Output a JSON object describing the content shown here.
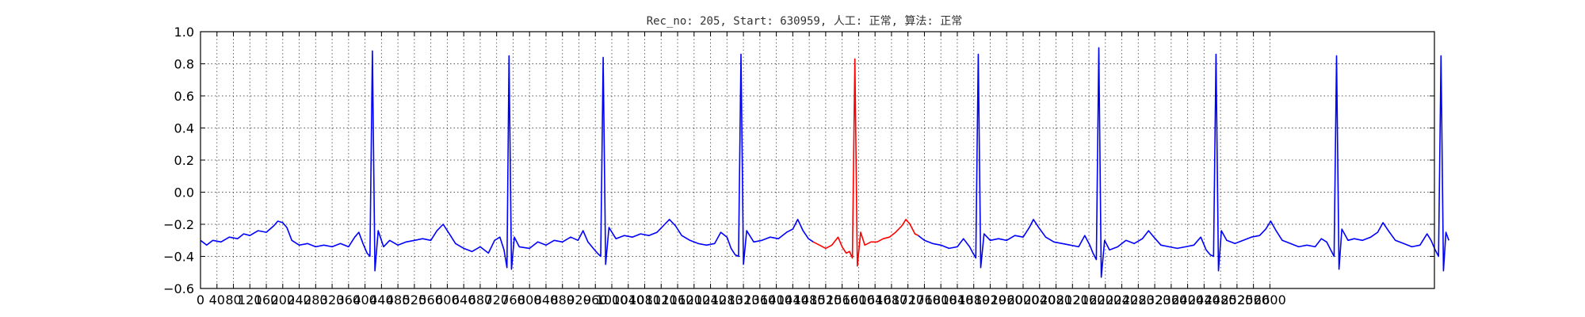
{
  "chart_data": {
    "type": "line",
    "title": "Rec_no: 205, Start: 630959, 人工: 正常, 算法: 正常",
    "xlabel": "",
    "ylabel": "",
    "xlim": [
      0,
      3000
    ],
    "ylim": [
      -0.6,
      1.0
    ],
    "grid": true,
    "y_ticks": [
      1.0,
      0.8,
      0.6,
      0.4,
      0.2,
      0.0,
      -0.2,
      -0.4,
      -0.6
    ],
    "y_tick_labels": [
      "1.0",
      "0.8",
      "0.6",
      "0.4",
      "0.2",
      "0.0",
      "−0.2",
      "−0.4",
      "−0.6"
    ],
    "x_ticks": [
      0,
      40,
      80,
      120,
      160,
      200,
      240,
      280,
      320,
      360,
      400,
      440,
      480,
      520,
      560,
      600,
      640,
      680,
      720,
      760,
      800,
      840,
      880,
      920,
      960,
      1000,
      1040,
      1080,
      1120,
      1160,
      1200,
      1240,
      1280,
      1320,
      1360,
      1400,
      1440,
      1480,
      1520,
      1560,
      1600,
      1640,
      1680,
      1720,
      1760,
      1800,
      1840,
      1880,
      1920,
      1960,
      2000,
      2040,
      2080,
      2120,
      2160,
      2200,
      2240,
      2280,
      2320,
      2360,
      2400,
      2440,
      2480,
      2520,
      2560,
      2600
    ],
    "x_tick_labels": [
      "0",
      "40",
      "80",
      "120",
      "160",
      "200",
      "240",
      "280",
      "320",
      "360",
      "400",
      "440",
      "480",
      "520",
      "560",
      "600",
      "640",
      "680",
      "720",
      "760",
      "800",
      "840",
      "880",
      "920",
      "960",
      "1000",
      "1040",
      "1080",
      "1120",
      "1160",
      "1200",
      "1240",
      "1280",
      "1320",
      "1360",
      "1400",
      "1440",
      "1480",
      "1520",
      "1560",
      "1600",
      "1640",
      "1680",
      "1720",
      "1760",
      "1800",
      "1840",
      "1880",
      "1920",
      "1960",
      "2000",
      "2040",
      "2080",
      "2120",
      "2160",
      "2200",
      "2240",
      "2280",
      "2320",
      "2360",
      "2400",
      "2440",
      "2480",
      "2520",
      "2560",
      "2600"
    ],
    "series": [
      {
        "color": "#0000ff",
        "points": [
          [
            0,
            -0.3
          ],
          [
            15,
            -0.33
          ],
          [
            30,
            -0.3
          ],
          [
            50,
            -0.31
          ],
          [
            70,
            -0.28
          ],
          [
            90,
            -0.29
          ],
          [
            105,
            -0.26
          ],
          [
            120,
            -0.27
          ],
          [
            140,
            -0.24
          ],
          [
            160,
            -0.25
          ],
          [
            178,
            -0.21
          ],
          [
            188,
            -0.18
          ],
          [
            200,
            -0.19
          ],
          [
            210,
            -0.22
          ],
          [
            222,
            -0.3
          ],
          [
            240,
            -0.33
          ],
          [
            260,
            -0.32
          ],
          [
            280,
            -0.34
          ],
          [
            300,
            -0.33
          ],
          [
            320,
            -0.34
          ],
          [
            340,
            -0.32
          ],
          [
            360,
            -0.34
          ],
          [
            375,
            -0.28
          ],
          [
            385,
            -0.25
          ],
          [
            395,
            -0.32
          ],
          [
            405,
            -0.38
          ],
          [
            412,
            -0.4
          ],
          [
            418,
            0.88
          ],
          [
            424,
            -0.49
          ],
          [
            432,
            -0.24
          ],
          [
            445,
            -0.34
          ],
          [
            460,
            -0.3
          ],
          [
            480,
            -0.33
          ],
          [
            500,
            -0.31
          ],
          [
            520,
            -0.3
          ],
          [
            540,
            -0.29
          ],
          [
            560,
            -0.3
          ],
          [
            575,
            -0.24
          ],
          [
            590,
            -0.2
          ],
          [
            605,
            -0.26
          ],
          [
            620,
            -0.32
          ],
          [
            640,
            -0.35
          ],
          [
            660,
            -0.37
          ],
          [
            680,
            -0.34
          ],
          [
            700,
            -0.38
          ],
          [
            715,
            -0.3
          ],
          [
            728,
            -0.28
          ],
          [
            738,
            -0.36
          ],
          [
            745,
            -0.47
          ],
          [
            750,
            0.85
          ],
          [
            756,
            -0.48
          ],
          [
            763,
            -0.28
          ],
          [
            775,
            -0.34
          ],
          [
            800,
            -0.35
          ],
          [
            820,
            -0.31
          ],
          [
            840,
            -0.33
          ],
          [
            860,
            -0.3
          ],
          [
            880,
            -0.31
          ],
          [
            900,
            -0.28
          ],
          [
            918,
            -0.3
          ],
          [
            930,
            -0.24
          ],
          [
            942,
            -0.31
          ],
          [
            955,
            -0.35
          ],
          [
            965,
            -0.38
          ],
          [
            973,
            -0.4
          ],
          [
            979,
            0.84
          ],
          [
            985,
            -0.45
          ],
          [
            993,
            -0.22
          ],
          [
            1010,
            -0.29
          ],
          [
            1030,
            -0.27
          ],
          [
            1050,
            -0.28
          ],
          [
            1070,
            -0.26
          ],
          [
            1090,
            -0.27
          ],
          [
            1110,
            -0.25
          ],
          [
            1125,
            -0.21
          ],
          [
            1140,
            -0.17
          ],
          [
            1155,
            -0.21
          ],
          [
            1170,
            -0.27
          ],
          [
            1190,
            -0.3
          ],
          [
            1210,
            -0.32
          ],
          [
            1230,
            -0.33
          ],
          [
            1250,
            -0.32
          ],
          [
            1265,
            -0.25
          ],
          [
            1280,
            -0.28
          ],
          [
            1290,
            -0.35
          ],
          [
            1300,
            -0.39
          ],
          [
            1308,
            -0.4
          ],
          [
            1314,
            0.86
          ],
          [
            1320,
            -0.45
          ],
          [
            1328,
            -0.24
          ],
          [
            1345,
            -0.31
          ],
          [
            1365,
            -0.3
          ],
          [
            1385,
            -0.28
          ],
          [
            1405,
            -0.29
          ],
          [
            1425,
            -0.25
          ],
          [
            1440,
            -0.23
          ],
          [
            1452,
            -0.17
          ],
          [
            1465,
            -0.24
          ],
          [
            1478,
            -0.29
          ],
          [
            1490,
            -0.31
          ]
        ]
      },
      {
        "color": "#ff0000",
        "points": [
          [
            1490,
            -0.31
          ],
          [
            1505,
            -0.33
          ],
          [
            1520,
            -0.35
          ],
          [
            1535,
            -0.33
          ],
          [
            1550,
            -0.28
          ],
          [
            1560,
            -0.34
          ],
          [
            1570,
            -0.38
          ],
          [
            1578,
            -0.37
          ],
          [
            1585,
            -0.41
          ],
          [
            1591,
            0.83
          ],
          [
            1597,
            -0.46
          ],
          [
            1605,
            -0.25
          ],
          [
            1615,
            -0.33
          ],
          [
            1630,
            -0.31
          ],
          [
            1645,
            -0.31
          ],
          [
            1660,
            -0.29
          ],
          [
            1675,
            -0.28
          ],
          [
            1690,
            -0.25
          ],
          [
            1705,
            -0.21
          ],
          [
            1715,
            -0.17
          ],
          [
            1725,
            -0.2
          ],
          [
            1737,
            -0.26
          ],
          [
            1745,
            -0.27
          ]
        ]
      },
      {
        "color": "#0000ff",
        "points": [
          [
            1745,
            -0.27
          ],
          [
            1760,
            -0.3
          ],
          [
            1780,
            -0.32
          ],
          [
            1800,
            -0.33
          ],
          [
            1820,
            -0.35
          ],
          [
            1840,
            -0.34
          ],
          [
            1855,
            -0.29
          ],
          [
            1870,
            -0.34
          ],
          [
            1878,
            -0.38
          ],
          [
            1885,
            -0.41
          ],
          [
            1891,
            0.86
          ],
          [
            1897,
            -0.47
          ],
          [
            1905,
            -0.26
          ],
          [
            1920,
            -0.3
          ],
          [
            1940,
            -0.29
          ],
          [
            1960,
            -0.3
          ],
          [
            1980,
            -0.27
          ],
          [
            2000,
            -0.28
          ],
          [
            2015,
            -0.22
          ],
          [
            2025,
            -0.17
          ],
          [
            2038,
            -0.22
          ],
          [
            2055,
            -0.28
          ],
          [
            2075,
            -0.31
          ],
          [
            2095,
            -0.32
          ],
          [
            2115,
            -0.33
          ],
          [
            2135,
            -0.34
          ],
          [
            2150,
            -0.27
          ],
          [
            2162,
            -0.33
          ],
          [
            2170,
            -0.38
          ],
          [
            2178,
            -0.42
          ],
          [
            2184,
            0.9
          ],
          [
            2190,
            -0.53
          ],
          [
            2198,
            -0.3
          ],
          [
            2210,
            -0.36
          ],
          [
            2230,
            -0.34
          ],
          [
            2250,
            -0.3
          ],
          [
            2270,
            -0.32
          ],
          [
            2290,
            -0.29
          ],
          [
            2305,
            -0.24
          ],
          [
            2318,
            -0.28
          ],
          [
            2335,
            -0.33
          ],
          [
            2355,
            -0.34
          ],
          [
            2375,
            -0.35
          ],
          [
            2395,
            -0.34
          ],
          [
            2415,
            -0.33
          ],
          [
            2432,
            -0.28
          ],
          [
            2445,
            -0.36
          ],
          [
            2455,
            -0.39
          ],
          [
            2463,
            -0.4
          ],
          [
            2469,
            0.86
          ],
          [
            2475,
            -0.49
          ],
          [
            2482,
            -0.24
          ],
          [
            2495,
            -0.3
          ],
          [
            2515,
            -0.32
          ],
          [
            2535,
            -0.3
          ],
          [
            2555,
            -0.28
          ],
          [
            2575,
            -0.27
          ],
          [
            2590,
            -0.23
          ],
          [
            2602,
            -0.18
          ],
          [
            2615,
            -0.24
          ],
          [
            2630,
            -0.3
          ],
          [
            2650,
            -0.32
          ],
          [
            2670,
            -0.34
          ],
          [
            2690,
            -0.33
          ],
          [
            2710,
            -0.34
          ],
          [
            2725,
            -0.29
          ],
          [
            2738,
            -0.31
          ],
          [
            2748,
            -0.36
          ],
          [
            2756,
            -0.4
          ],
          [
            2762,
            0.85
          ],
          [
            2768,
            -0.48
          ],
          [
            2775,
            -0.23
          ],
          [
            2790,
            -0.3
          ],
          [
            2805,
            -0.29
          ],
          [
            2825,
            -0.3
          ],
          [
            2845,
            -0.28
          ],
          [
            2862,
            -0.25
          ],
          [
            2875,
            -0.19
          ],
          [
            2888,
            -0.24
          ],
          [
            2905,
            -0.3
          ],
          [
            2925,
            -0.32
          ],
          [
            2945,
            -0.34
          ],
          [
            2965,
            -0.33
          ],
          [
            2982,
            -0.26
          ],
          [
            2992,
            -0.3
          ],
          [
            3002,
            -0.36
          ],
          [
            3010,
            -0.4
          ],
          [
            3016,
            0.85
          ],
          [
            3022,
            -0.49
          ],
          [
            3028,
            -0.25
          ],
          [
            3035,
            -0.3
          ]
        ]
      }
    ]
  }
}
